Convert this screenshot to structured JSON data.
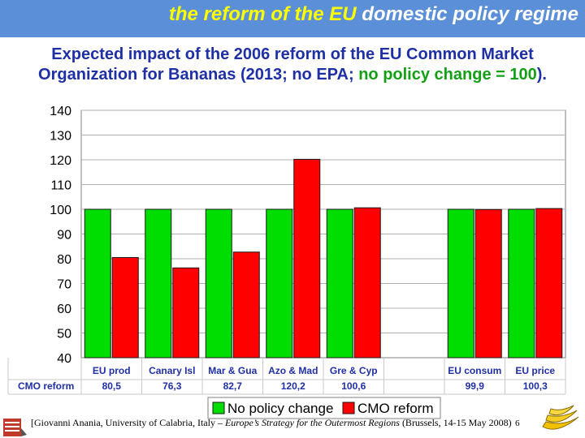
{
  "header": {
    "banner_part1": "the reform of the EU",
    "banner_part2": "domestic policy regime"
  },
  "title": {
    "line1": "Expected impact of the 2006 reform of the EU Common Market",
    "line2_main": "Organization for Bananas (2013; no EPA;",
    "line2_green": "no policy change = 100",
    "line2_end": ")."
  },
  "chart_data": {
    "type": "bar",
    "categories": [
      "EU prod",
      "Canary Isl",
      "Mar & Gua",
      "Azo & Mad",
      "Gre & Cyp",
      "",
      "EU consum",
      "EU price"
    ],
    "series": [
      {
        "name": "No policy change",
        "color": "#00dd00",
        "values": [
          100,
          100,
          100,
          100,
          100,
          null,
          100,
          100
        ]
      },
      {
        "name": "CMO reform",
        "color": "#ff0000",
        "values": [
          80.5,
          76.3,
          82.7,
          120.2,
          100.6,
          null,
          99.9,
          100.3
        ]
      }
    ],
    "ylim": [
      40,
      140
    ],
    "yticks": [
      40,
      50,
      60,
      70,
      80,
      90,
      100,
      110,
      120,
      130,
      140
    ],
    "grid": true,
    "legend": "bottom",
    "table_row_label": "CMO reform",
    "table_values": [
      "80,5",
      "76,3",
      "82,7",
      "120,2",
      "100,6",
      "",
      "99,9",
      "100,3"
    ]
  },
  "footer": {
    "citation_start": "[Giovanni Anania, University of Calabria, Italy – ",
    "citation_italic": "Europe’s Strategy for the Outermost Regions",
    "citation_end": " (Brussels, 14-15 May 2008)",
    "page_number": "6"
  }
}
